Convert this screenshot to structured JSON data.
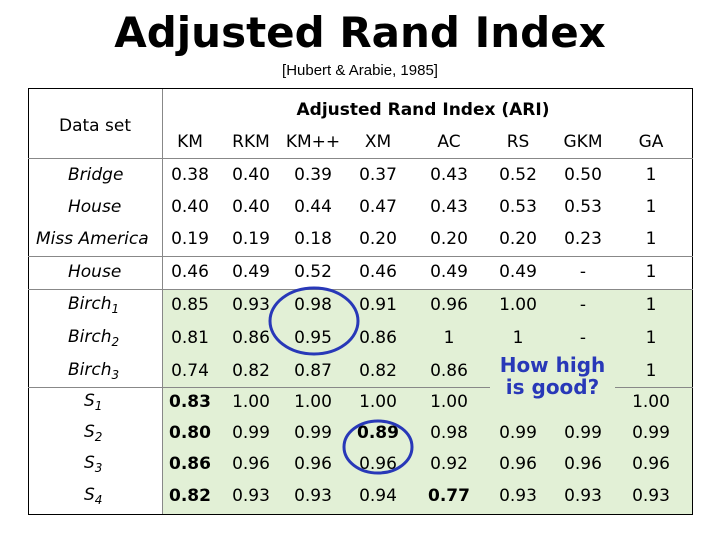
{
  "header": {
    "title": "Adjusted Rand Index",
    "citation": "[Hubert & Arabie, 1985]"
  },
  "table": {
    "row_header": "Data set",
    "group_header": "Adjusted Rand Index (ARI)",
    "columns": [
      "KM",
      "RKM",
      "KM++",
      "XM",
      "AC",
      "RS",
      "GKM",
      "GA"
    ],
    "groups": [
      3,
      1,
      3,
      4
    ],
    "rows": [
      {
        "name": "Bridge",
        "values": [
          "0.38",
          "0.40",
          "0.39",
          "0.37",
          "0.43",
          "0.52",
          "0.50",
          "1"
        ]
      },
      {
        "name": "House",
        "values": [
          "0.40",
          "0.40",
          "0.44",
          "0.47",
          "0.43",
          "0.53",
          "0.53",
          "1"
        ]
      },
      {
        "name": "Miss America",
        "values": [
          "0.19",
          "0.19",
          "0.18",
          "0.20",
          "0.20",
          "0.20",
          "0.23",
          "1"
        ]
      },
      {
        "name": "House",
        "values": [
          "0.46",
          "0.49",
          "0.52",
          "0.46",
          "0.49",
          "0.49",
          "-",
          "1"
        ]
      },
      {
        "name": "Birch",
        "sub": "1",
        "values": [
          "0.85",
          "0.93",
          "0.98",
          "0.91",
          "0.96",
          "1.00",
          "-",
          "1"
        ]
      },
      {
        "name": "Birch",
        "sub": "2",
        "values": [
          "0.81",
          "0.86",
          "0.95",
          "0.86",
          "1",
          "1",
          "-",
          "1"
        ]
      },
      {
        "name": "Birch",
        "sub": "3",
        "values": [
          "0.74",
          "0.82",
          "0.87",
          "0.82",
          "0.86",
          null,
          null,
          "1"
        ]
      },
      {
        "name": "S",
        "sub": "1",
        "values": [
          "0.83",
          "1.00",
          "1.00",
          "1.00",
          "1.00",
          null,
          null,
          "1.00"
        ]
      },
      {
        "name": "S",
        "sub": "2",
        "values": [
          "0.80",
          "0.99",
          "0.99",
          "0.89",
          "0.98",
          "0.99",
          "0.99",
          "0.99"
        ]
      },
      {
        "name": "S",
        "sub": "3",
        "values": [
          "0.86",
          "0.96",
          "0.96",
          "0.96",
          "0.92",
          "0.96",
          "0.96",
          "0.96"
        ]
      },
      {
        "name": "S",
        "sub": "4",
        "values": [
          "0.82",
          "0.93",
          "0.93",
          "0.94",
          "0.77",
          "0.93",
          "0.93",
          "0.93"
        ]
      }
    ],
    "bold_cells": [
      [
        7,
        0
      ],
      [
        8,
        0
      ],
      [
        9,
        0
      ],
      [
        10,
        0
      ],
      [
        8,
        3
      ],
      [
        10,
        4
      ]
    ]
  },
  "callout": "How high is good?"
}
